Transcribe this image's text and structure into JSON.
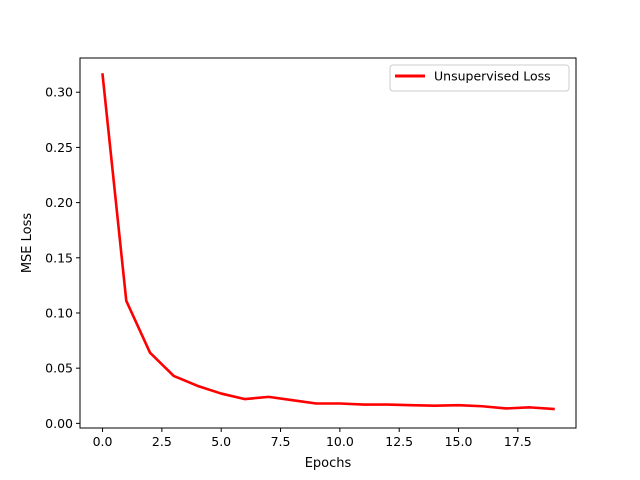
{
  "chart_data": {
    "type": "line",
    "title": "",
    "xlabel": "Epochs",
    "ylabel": "MSE Loss",
    "xlim": [
      -0.95,
      19.95
    ],
    "ylim": [
      -0.0042,
      0.331
    ],
    "xticks": [
      0.0,
      2.5,
      5.0,
      7.5,
      10.0,
      12.5,
      15.0,
      17.5
    ],
    "xtick_labels": [
      "0.0",
      "2.5",
      "5.0",
      "7.5",
      "10.0",
      "12.5",
      "15.0",
      "17.5"
    ],
    "yticks": [
      0.0,
      0.05,
      0.1,
      0.15,
      0.2,
      0.25,
      0.3
    ],
    "ytick_labels": [
      "0.00",
      "0.05",
      "0.10",
      "0.15",
      "0.20",
      "0.25",
      "0.30"
    ],
    "grid": false,
    "legend_position": "top-right",
    "series": [
      {
        "name": "Unsupervised Loss",
        "color": "#ff0000",
        "x": [
          0,
          1,
          2,
          3,
          4,
          5,
          6,
          7,
          8,
          9,
          10,
          11,
          12,
          13,
          14,
          15,
          16,
          17,
          18,
          19
        ],
        "y": [
          0.316,
          0.111,
          0.064,
          0.043,
          0.034,
          0.027,
          0.022,
          0.024,
          0.021,
          0.018,
          0.018,
          0.017,
          0.017,
          0.0165,
          0.016,
          0.0165,
          0.0155,
          0.0135,
          0.0145,
          0.013
        ]
      }
    ]
  }
}
